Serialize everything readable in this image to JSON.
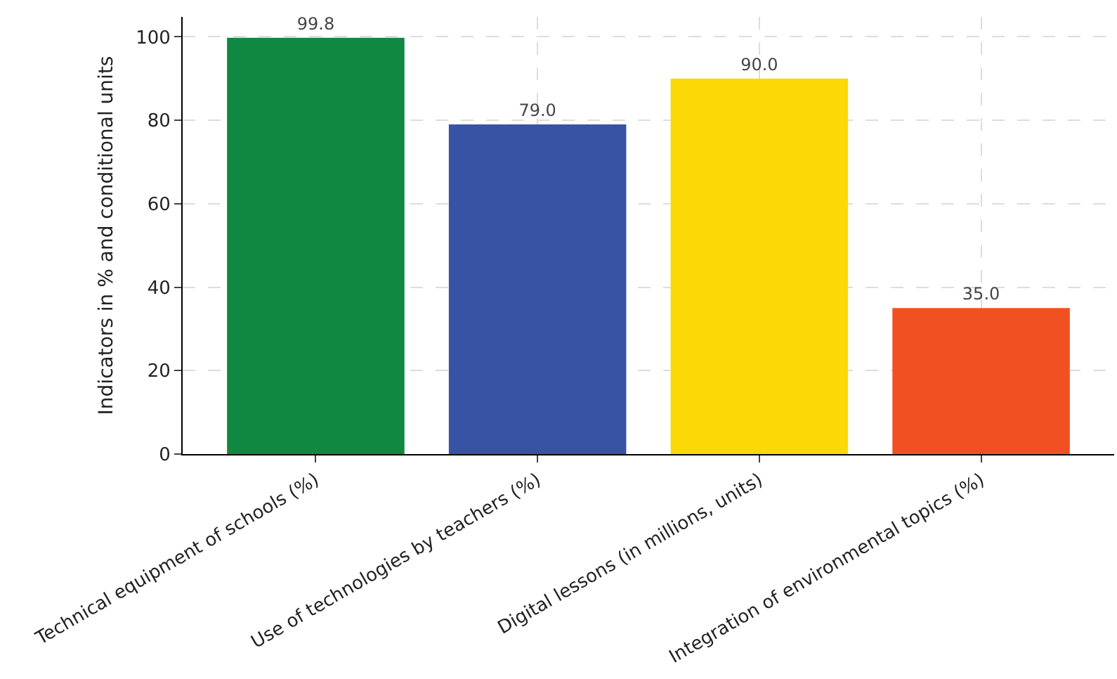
{
  "chart_data": {
    "type": "bar",
    "ylabel": "Indicators in % and conditional units",
    "categories": [
      "Technical equipment of schools (%)",
      "Use of technologies by teachers (%)",
      "Digital lessons (in millions, units)",
      "Integration of environmental topics (%)"
    ],
    "values": [
      99.8,
      79.0,
      90.0,
      35.0
    ],
    "colors": [
      "#118842",
      "#3853a4",
      "#fcd906",
      "#f15122"
    ],
    "value_labels": [
      "99.8",
      "79.0",
      "90.0",
      "35.0"
    ],
    "ylim": [
      0,
      104.8
    ],
    "yticks": [
      0,
      20,
      40,
      60,
      80,
      100
    ],
    "grid": true
  }
}
